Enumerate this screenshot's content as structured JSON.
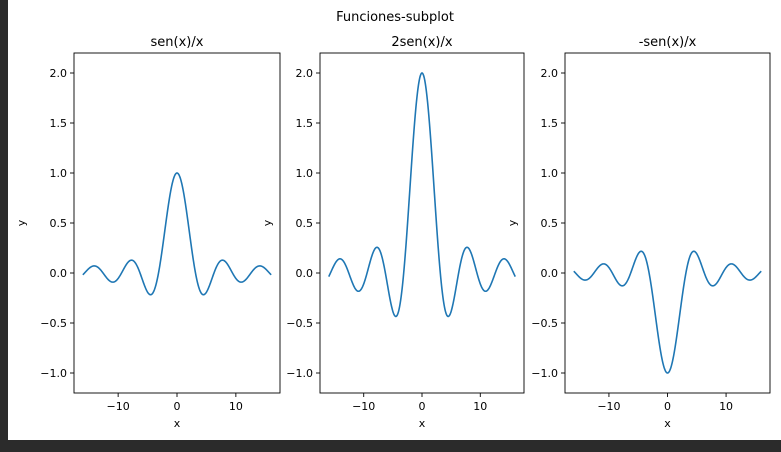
{
  "figure": {
    "suptitle": "Funciones-subplot"
  },
  "chart_data": [
    {
      "type": "line",
      "title": "sen(x)/x",
      "xlabel": "x",
      "ylabel": "y",
      "function": "sin(x)/x",
      "scale": 1,
      "x_range": [
        -16,
        16
      ],
      "xlim": [
        -17.5,
        17.5
      ],
      "ylim": [
        -1.2,
        2.2
      ],
      "xticks": [
        -10,
        0,
        10
      ],
      "xtick_labels": [
        "−10",
        "0",
        "10"
      ],
      "yticks": [
        -1.0,
        -0.5,
        0.0,
        0.5,
        1.0,
        1.5,
        2.0
      ],
      "ytick_labels": [
        "−1.0",
        "−0.5",
        "0.0",
        "0.5",
        "1.0",
        "1.5",
        "2.0"
      ],
      "series": [
        {
          "color": "#1f77b4",
          "peak_x": 0,
          "peak_y": 1.0
        }
      ],
      "grid": false
    },
    {
      "type": "line",
      "title": "2sen(x)/x",
      "xlabel": "x",
      "ylabel": "y",
      "function": "2*sin(x)/x",
      "scale": 2,
      "x_range": [
        -16,
        16
      ],
      "xlim": [
        -17.5,
        17.5
      ],
      "ylim": [
        -1.2,
        2.2
      ],
      "xticks": [
        -10,
        0,
        10
      ],
      "xtick_labels": [
        "−10",
        "0",
        "10"
      ],
      "yticks": [
        -1.0,
        -0.5,
        0.0,
        0.5,
        1.0,
        1.5,
        2.0
      ],
      "ytick_labels": [
        "−1.0",
        "−0.5",
        "0.0",
        "0.5",
        "1.0",
        "1.5",
        "2.0"
      ],
      "series": [
        {
          "color": "#1f77b4",
          "peak_x": 0,
          "peak_y": 2.0
        }
      ],
      "grid": false
    },
    {
      "type": "line",
      "title": "-sen(x)/x",
      "xlabel": "x",
      "ylabel": "y",
      "function": "-sin(x)/x",
      "scale": -1,
      "x_range": [
        -16,
        16
      ],
      "xlim": [
        -17.5,
        17.5
      ],
      "ylim": [
        -1.2,
        2.2
      ],
      "xticks": [
        -10,
        0,
        10
      ],
      "xtick_labels": [
        "−10",
        "0",
        "10"
      ],
      "yticks": [
        -1.0,
        -0.5,
        0.0,
        0.5,
        1.0,
        1.5,
        2.0
      ],
      "ytick_labels": [
        "−1.0",
        "−0.5",
        "0.0",
        "0.5",
        "1.0",
        "1.5",
        "2.0"
      ],
      "series": [
        {
          "color": "#1f77b4",
          "peak_x": 0,
          "peak_y": -1.0
        }
      ],
      "grid": false
    }
  ]
}
